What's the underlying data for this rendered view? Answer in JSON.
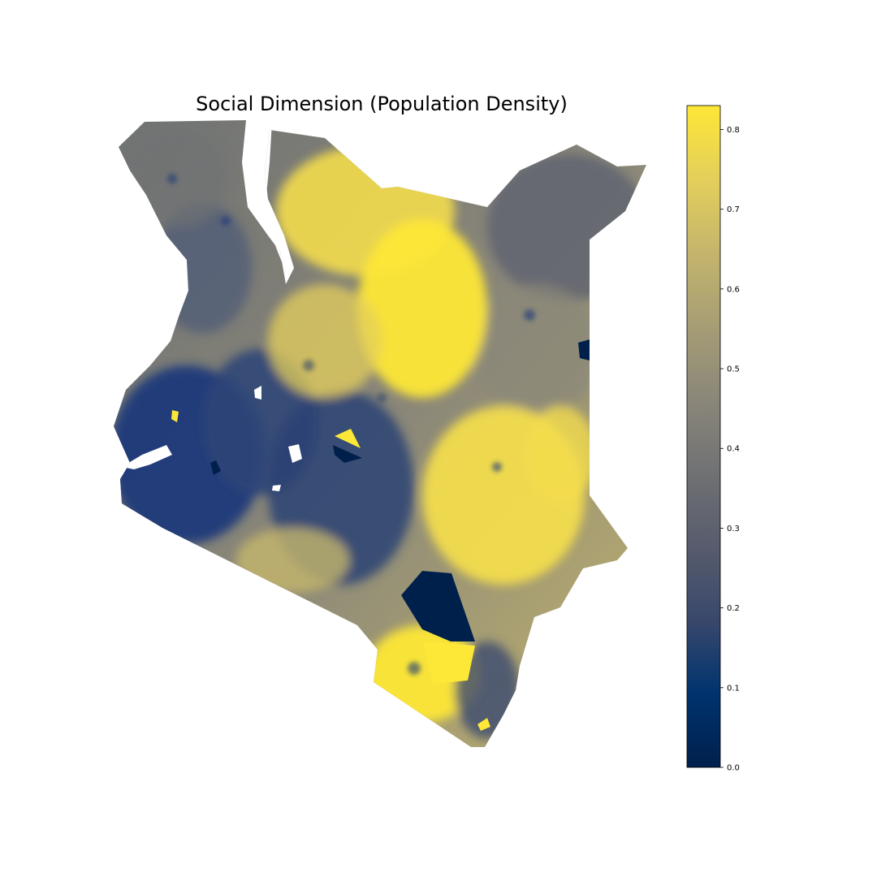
{
  "title": "Social Dimension (Population Density)",
  "colormap": {
    "name": "cividis",
    "stops": [
      "#00204c",
      "#00336f",
      "#39486b",
      "#575c6d",
      "#707173",
      "#8a8779",
      "#a69d75",
      "#c4b56c",
      "#e4cf5b",
      "#fde737"
    ]
  },
  "colorbar": {
    "min": 0.0,
    "max": 0.83,
    "ticks": [
      {
        "value": 0.0,
        "label": "0.0"
      },
      {
        "value": 0.1,
        "label": "0.1"
      },
      {
        "value": 0.2,
        "label": "0.2"
      },
      {
        "value": 0.3,
        "label": "0.3"
      },
      {
        "value": 0.4,
        "label": "0.4"
      },
      {
        "value": 0.5,
        "label": "0.5"
      },
      {
        "value": 0.6,
        "label": "0.6"
      },
      {
        "value": 0.7,
        "label": "0.7"
      },
      {
        "value": 0.8,
        "label": "0.8"
      }
    ]
  },
  "legend_placement": "right",
  "axes_visible": false
}
